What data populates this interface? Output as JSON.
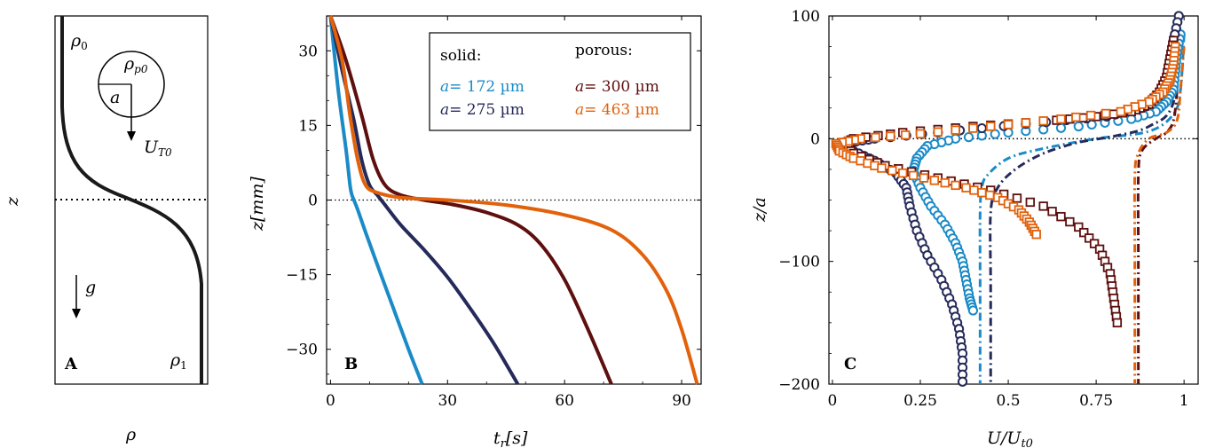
{
  "panelA": {
    "letter": "A",
    "xlabel": "ρ",
    "ylabel": "z",
    "rho0": "ρ",
    "rho0_sub": "0",
    "rho1": "ρ",
    "rho1_sub": "1",
    "particle_density": "ρ",
    "particle_density_sub": "p0",
    "radius": "a",
    "velocity": "U",
    "velocity_sub": "T0",
    "gravity": "g"
  },
  "chart_data": [
    {
      "panel": "B",
      "type": "line",
      "xlabel": "t_r[s]",
      "ylabel": "z[mm]",
      "xlim": [
        -1,
        95
      ],
      "ylim": [
        -37,
        37
      ],
      "xticks": [
        0,
        30,
        60,
        90
      ],
      "yticks": [
        30,
        15,
        0,
        -15,
        -30
      ],
      "grid": false,
      "legend_position": "top-right",
      "legend": {
        "solid_header": "solid:",
        "porous_header": "porous:"
      },
      "series": [
        {
          "name": "a = 172 µm",
          "group": "solid",
          "color": "#1a8bc7",
          "x": [
            0,
            2,
            4,
            5,
            5.5,
            6,
            7,
            9,
            12,
            16,
            20,
            23.5
          ],
          "y": [
            37,
            22,
            10,
            3,
            1,
            0,
            -2,
            -6.5,
            -13,
            -21.5,
            -30,
            -37
          ]
        },
        {
          "name": "a = 275 µm",
          "group": "solid",
          "color": "#252a5a",
          "x": [
            0,
            3,
            6,
            8,
            10,
            12,
            14,
            18,
            24,
            30,
            36,
            42,
            48
          ],
          "y": [
            37,
            26,
            16,
            8,
            3,
            1,
            -1,
            -5,
            -10,
            -15.5,
            -22,
            -29,
            -37
          ]
        },
        {
          "name": "a = 300 µm",
          "group": "porous",
          "color": "#5e0f0f",
          "x": [
            0,
            4,
            8,
            11,
            14,
            18,
            24,
            32,
            40,
            48,
            54,
            60,
            66,
            72
          ],
          "y": [
            37,
            28,
            17,
            8,
            3,
            1,
            0,
            -1,
            -2.5,
            -5,
            -9,
            -16,
            -26,
            -37
          ]
        },
        {
          "name": "a = 463 µm",
          "group": "porous",
          "color": "#e2620c",
          "x": [
            0,
            3,
            5,
            7,
            9,
            12,
            18,
            30,
            45,
            60,
            72,
            80,
            86,
            90,
            94
          ],
          "y": [
            37,
            28,
            17,
            8,
            3,
            1.5,
            0.5,
            0,
            -1,
            -3,
            -6,
            -11,
            -18,
            -26,
            -37
          ]
        }
      ]
    },
    {
      "panel": "C",
      "type": "scatter",
      "xlabel": "U/U_t0",
      "ylabel": "z/a",
      "xlim": [
        -0.01,
        1.04
      ],
      "ylim": [
        -200,
        100
      ],
      "xticks": [
        "0",
        "0.25",
        "0.5",
        "0.75",
        "1"
      ],
      "yticks": [
        "100",
        "0",
        "−100",
        "−200"
      ],
      "grid": false,
      "series": [
        {
          "name": "a = 172 µm",
          "marker": "circle",
          "color": "#1a8bc7",
          "x": [
            0.99,
            0.98,
            0.975,
            0.97,
            0.95,
            0.92,
            0.85,
            0.7,
            0.5,
            0.35,
            0.27,
            0.24,
            0.23,
            0.25,
            0.28,
            0.32,
            0.35,
            0.37,
            0.38,
            0.39,
            0.4
          ],
          "y": [
            85,
            70,
            55,
            40,
            30,
            22,
            16,
            10,
            5,
            0,
            -6,
            -16,
            -26,
            -40,
            -55,
            -70,
            -85,
            -100,
            -115,
            -130,
            -140
          ]
        },
        {
          "name": "a = 275 µm",
          "marker": "circle",
          "color": "#252a5a",
          "x": [
            0.985,
            0.97,
            0.96,
            0.95,
            0.93,
            0.88,
            0.78,
            0.55,
            0.3,
            0.12,
            0.05,
            0.04,
            0.06,
            0.12,
            0.18,
            0.21,
            0.22,
            0.24,
            0.27,
            0.31,
            0.34,
            0.36,
            0.37,
            0.37
          ],
          "y": [
            100,
            80,
            60,
            45,
            35,
            25,
            18,
            12,
            5,
            0,
            -3,
            -6,
            -10,
            -18,
            -28,
            -40,
            -55,
            -75,
            -95,
            -115,
            -135,
            -155,
            -175,
            -198
          ]
        },
        {
          "name": "a = 300 µm",
          "marker": "square",
          "color": "#5e0f0f",
          "x": [
            0.97,
            0.96,
            0.95,
            0.93,
            0.9,
            0.85,
            0.75,
            0.6,
            0.4,
            0.2,
            0.06,
            0.03,
            0.06,
            0.15,
            0.3,
            0.45,
            0.6,
            0.7,
            0.76,
            0.79,
            0.8,
            0.81
          ],
          "y": [
            80,
            65,
            50,
            38,
            28,
            22,
            18,
            14,
            10,
            5,
            0,
            -4,
            -12,
            -22,
            -32,
            -42,
            -55,
            -72,
            -90,
            -110,
            -130,
            -150
          ]
        },
        {
          "name": "a = 463 µm",
          "marker": "square",
          "color": "#e2620c",
          "x": [
            0.975,
            0.97,
            0.96,
            0.94,
            0.9,
            0.82,
            0.65,
            0.45,
            0.25,
            0.08,
            0.01,
            0.02,
            0.06,
            0.14,
            0.26,
            0.38,
            0.47,
            0.53,
            0.56,
            0.58
          ],
          "y": [
            75,
            60,
            48,
            38,
            30,
            22,
            16,
            10,
            4,
            0,
            -4,
            -10,
            -16,
            -24,
            -32,
            -40,
            -48,
            -58,
            -68,
            -78
          ]
        }
      ],
      "model_series": [
        {
          "name": "a = 172 µm",
          "color": "#1a8bc7",
          "x": [
            1.0,
            0.99,
            0.97,
            0.9,
            0.75,
            0.6,
            0.5,
            0.44,
            0.425,
            0.42,
            0.42,
            0.42
          ],
          "y": [
            85,
            40,
            20,
            6,
            0,
            -8,
            -16,
            -30,
            -40,
            -60,
            -120,
            -200
          ]
        },
        {
          "name": "a = 275 µm",
          "color": "#252a5a",
          "x": [
            0.99,
            0.97,
            0.9,
            0.8,
            0.7,
            0.6,
            0.52,
            0.47,
            0.45,
            0.45,
            0.45
          ],
          "y": [
            100,
            30,
            10,
            2,
            -3,
            -12,
            -25,
            -40,
            -60,
            -120,
            -200
          ]
        },
        {
          "name": "a = 300 µm",
          "color": "#5e0f0f",
          "x": [
            0.985,
            0.98,
            0.97,
            0.95,
            0.92,
            0.88,
            0.87,
            0.87,
            0.87
          ],
          "y": [
            80,
            40,
            15,
            5,
            0,
            -10,
            -30,
            -100,
            -200
          ]
        },
        {
          "name": "a = 463 µm",
          "color": "#e2620c",
          "x": [
            1.0,
            0.99,
            0.98,
            0.95,
            0.9,
            0.87,
            0.86,
            0.86,
            0.86
          ],
          "y": [
            75,
            40,
            15,
            5,
            0,
            -12,
            -30,
            -100,
            -200
          ]
        }
      ]
    }
  ],
  "panel_letters": {
    "B": "B",
    "C": "C"
  },
  "legend_labels": {
    "s1_sym": "a",
    "s1_val": "= 172 µm",
    "s2_sym": "a",
    "s2_val": "= 275 µm",
    "p1_sym": "a",
    "p1_val": "= 300 µm",
    "p2_sym": "a",
    "p2_val": "= 463 µm"
  },
  "axis_text": {
    "B_x_main": "t",
    "B_x_sub": "r",
    "B_x_unit": "[s]",
    "B_y_main": "z",
    "B_y_unit": "[mm]",
    "C_x_main": "U/U",
    "C_x_sub": "t0",
    "C_y": "z/a"
  }
}
